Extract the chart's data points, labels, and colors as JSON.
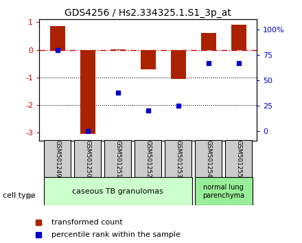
{
  "title": "GDS4256 / Hs2.334325.1.S1_3p_at",
  "samples": [
    "GSM501249",
    "GSM501250",
    "GSM501251",
    "GSM501252",
    "GSM501253",
    "GSM501254",
    "GSM501255"
  ],
  "transformed_count": [
    0.85,
    -3.05,
    0.02,
    -0.7,
    -1.05,
    0.6,
    0.9
  ],
  "percentile_rank": [
    80,
    0,
    38,
    20,
    25,
    67,
    67
  ],
  "ylim_left": [
    -3.3,
    1.1
  ],
  "ylim_right": [
    -10,
    110
  ],
  "yticks_left": [
    -3,
    -2,
    -1,
    0,
    1
  ],
  "yticks_right": [
    0,
    25,
    50,
    75,
    100
  ],
  "ytick_labels_right": [
    "0",
    "25",
    "50",
    "75",
    "100%"
  ],
  "bar_color": "#aa2200",
  "dot_color": "#0000cc",
  "hline_color": "#cc0000",
  "grid_color": "#000000",
  "cell_type_groups": [
    {
      "label": "caseous TB granulomas",
      "start": 0,
      "end": 4,
      "color": "#ccffcc"
    },
    {
      "label": "normal lung\nparenchyma",
      "start": 5,
      "end": 6,
      "color": "#99ee99"
    }
  ],
  "sample_box_color": "#cccccc",
  "legend_bar_label": "transformed count",
  "legend_dot_label": "percentile rank within the sample",
  "cell_type_label": "cell type",
  "fig_width": 4.4,
  "fig_height": 3.54
}
